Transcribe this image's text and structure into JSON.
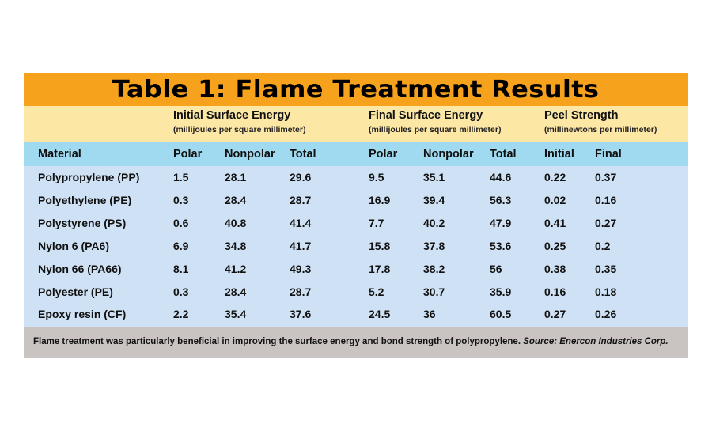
{
  "title": "Table 1: Flame Treatment Results",
  "groups": [
    {
      "title": "Initial Surface Energy",
      "subtitle": "(millijoules per square millimeter)"
    },
    {
      "title": "Final Surface Energy",
      "subtitle": "(millijoules per square millimeter)"
    },
    {
      "title": "Peel Strength",
      "subtitle": "(millinewtons per millimeter)"
    }
  ],
  "columns": [
    "Material",
    "Polar",
    "Nonpolar",
    "Total",
    "Polar",
    "Nonpolar",
    "Total",
    "Initial",
    "Final"
  ],
  "rows": [
    [
      "Polypropylene (PP)",
      "1.5",
      "28.1",
      "29.6",
      "9.5",
      "35.1",
      "44.6",
      "0.22",
      "0.37"
    ],
    [
      "Polyethylene (PE)",
      "0.3",
      "28.4",
      "28.7",
      "16.9",
      "39.4",
      "56.3",
      "0.02",
      "0.16"
    ],
    [
      "Polystyrene (PS)",
      "0.6",
      "40.8",
      "41.4",
      "7.7",
      "40.2",
      "47.9",
      "0.41",
      "0.27"
    ],
    [
      "Nylon 6 (PA6)",
      "6.9",
      "34.8",
      "41.7",
      "15.8",
      "37.8",
      "53.6",
      "0.25",
      "0.2"
    ],
    [
      "Nylon 66 (PA66)",
      "8.1",
      "41.2",
      "49.3",
      "17.8",
      "38.2",
      "56",
      "0.38",
      "0.35"
    ],
    [
      "Polyester (PE)",
      "0.3",
      "28.4",
      "28.7",
      "5.2",
      "30.7",
      "35.9",
      "0.16",
      "0.18"
    ],
    [
      "Epoxy resin (CF)",
      "2.2",
      "35.4",
      "37.6",
      "24.5",
      "36",
      "60.5",
      "0.27",
      "0.26"
    ]
  ],
  "footer": {
    "caption": "Flame treatment was particularly beneficial in improving the surface energy and bond strength of polypropylene.",
    "source": "Source: Enercon Industries Corp."
  },
  "colors": {
    "title_bar": "#f6a21d",
    "group_header": "#fde7a5",
    "column_header": "#9fdaf0",
    "body": "#cfe1f4",
    "footer": "#c9c4c1"
  }
}
